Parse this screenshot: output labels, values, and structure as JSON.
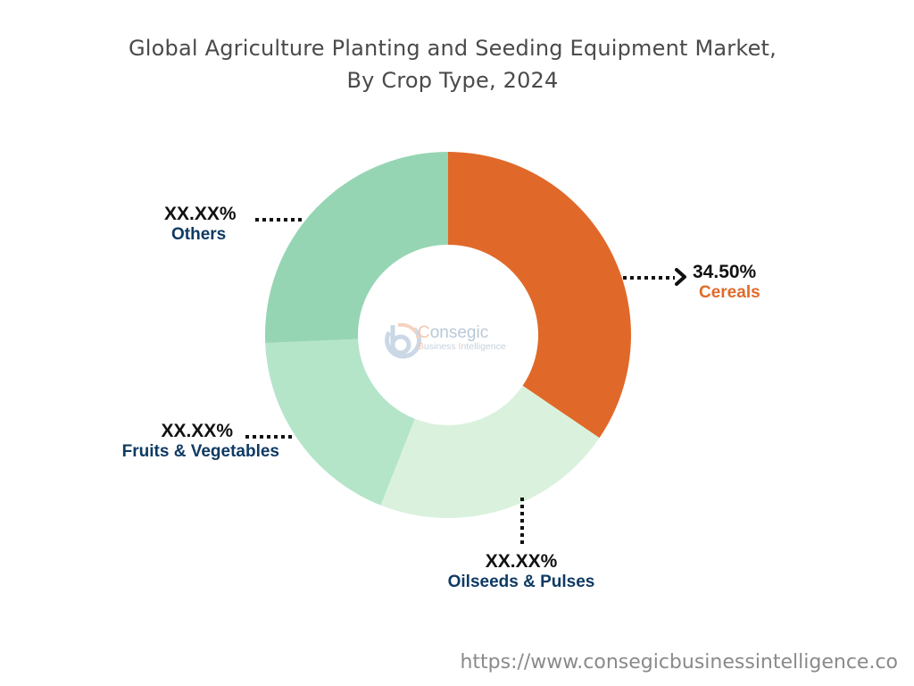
{
  "chart_data": {
    "type": "pie",
    "subtype": "donut",
    "title": "Global Agriculture Planting and Seeding Equipment Market, By Crop Type, 2024",
    "title_lines": [
      "Global Agriculture Planting and Seeding Equipment Market,",
      "By Crop Type, 2024"
    ],
    "categories": [
      "Cereals",
      "Oilseeds & Pulses",
      "Fruits & Vegetables",
      "Others"
    ],
    "values": [
      34.5,
      21.5,
      18.3,
      25.7
    ],
    "value_labels": [
      "34.50%",
      "XX.XX%",
      "XX.XX%",
      "XX.XX%"
    ],
    "colors": [
      "#e0692a",
      "#daf2dd",
      "#b4e5c9",
      "#96d5b3"
    ],
    "start_angle_deg": 0,
    "direction": "clockwise",
    "legend": "none (callout labels)"
  },
  "title": {
    "line1": "Global Agriculture Planting and Seeding Equipment Market,",
    "line2": "By Crop Type, 2024"
  },
  "labels": {
    "cereals": {
      "pct": "34.50%",
      "name": "Cereals"
    },
    "oilseeds": {
      "pct": "XX.XX%",
      "name": "Oilseeds & Pulses"
    },
    "fruits": {
      "pct": "XX.XX%",
      "name": "Fruits & Vegetables"
    },
    "others": {
      "pct": "XX.XX%",
      "name": "Others"
    }
  },
  "watermark": {
    "brand": "onsegic",
    "brand_initial": "C",
    "tagline_initial1": "B",
    "tagline_part1": "usiness ",
    "tagline_initial2": "I",
    "tagline_part2": "ntelligence"
  },
  "footer": {
    "url": "https://www.consegicbusinessintelligence.co"
  }
}
